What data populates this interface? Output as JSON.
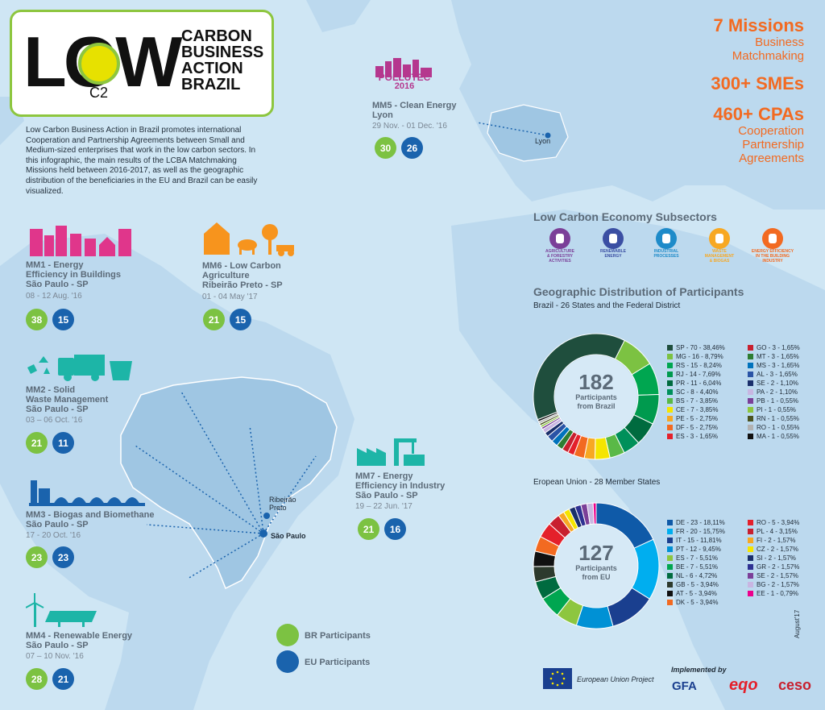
{
  "header": {
    "logo_text": "LOW",
    "logo_sub": "C2",
    "brand_lines": [
      "CARBON",
      "BUSINESS",
      "ACTION",
      "BRAZIL"
    ],
    "intro": "Low Carbon Business Action in Brazil promotes international Cooperation and Partnership Agreements between Small and Medium-sized enterprises that work in the low carbon sectors. In this infographic, the main results of the LCBA Matchmaking Missions held between 2016-2017, as well as the geographic distribution of the beneficiaries in the EU and Brazil can be easily visualized."
  },
  "stats": {
    "missions_value": "7 Missions",
    "missions_label1": "Business",
    "missions_label2": "Matchmaking",
    "smes": "300+ SMEs",
    "cpas": "460+ CPAs",
    "cpas_label1": "Cooperation",
    "cpas_label2": "Partnership",
    "cpas_label3": "Agreements"
  },
  "missions": {
    "mm1": {
      "title1": "MM1 - Energy",
      "title2": "Efficiency in Buildings",
      "city": "São Paulo - SP",
      "date": "08 - 12   Aug. '16",
      "br": "38",
      "eu": "15"
    },
    "mm2": {
      "title1": "MM2 - Solid",
      "title2": "Waste Management",
      "city": "São Paulo - SP",
      "date": "03 – 06 Oct. '16",
      "br": "21",
      "eu": "11"
    },
    "mm3": {
      "title1": "MM3 - Biogas and Biomethane",
      "city": "São Paulo - SP",
      "date": "17 - 20 Oct. '16",
      "br": "23",
      "eu": "23"
    },
    "mm4": {
      "title1": "MM4 - Renewable Energy",
      "city": "São Paulo - SP",
      "date": "07 – 10 Nov. '16",
      "br": "28",
      "eu": "21"
    },
    "mm5": {
      "logo": "POLLUTEC",
      "logo_year": "2016",
      "title1": "MM5 - Clean Energy",
      "city": "Lyon",
      "date": "29 Nov. - 01 Dec. '16",
      "br": "30",
      "eu": "26"
    },
    "mm6": {
      "title1": "MM6 - Low Carbon",
      "title2": "Agriculture",
      "city": "Ribeirão Preto - SP",
      "date": "01 - 04 May '17",
      "br": "21",
      "eu": "15"
    },
    "mm7": {
      "title1": "MM7 - Energy",
      "title2": "Efficiency in Industry",
      "city": "São Paulo - SP",
      "date": "19 – 22  Jun. '17",
      "br": "21",
      "eu": "16"
    }
  },
  "map_labels": {
    "lyon": "Lyon",
    "ribeirao": "Ribeirão",
    "ribeirao2": "Preto",
    "saopaulo": "São Paulo"
  },
  "subsectors": {
    "title": "Low Carbon Economy Subsectors",
    "items": [
      {
        "label1": "AGRICULTURE",
        "label2": "& FORESTRY",
        "label3": "ACTIVITIES",
        "color": "#7b3f98",
        "icon": "plant-icon"
      },
      {
        "label1": "RENEWABLE",
        "label2": "ENERGY",
        "label3": "",
        "color": "#3b4fa3",
        "icon": "bulb-icon"
      },
      {
        "label1": "INDUSTRIAL",
        "label2": "PROCESSES",
        "label3": "",
        "color": "#1e8bc9",
        "icon": "factory-icon"
      },
      {
        "label1": "WASTE",
        "label2": "MANAGEMENT",
        "label3": "& BIOGAS",
        "color": "#f7a823",
        "icon": "bin-icon"
      },
      {
        "label1": "ENERGY EFFICIENCY",
        "label2": "IN THE BUILDING",
        "label3": "INDUSTRY",
        "color": "#f26a21",
        "icon": "building-icon"
      }
    ]
  },
  "geo": {
    "title": "Geographic Distribution of Participants",
    "brazil_sub": "Brazil - 26 States and the Federal District",
    "eu_sub": "Eropean Union - 28 Member States",
    "brazil_total": "182",
    "brazil_total_label1": "Participants",
    "brazil_total_label2": "from Brazil",
    "eu_total": "127",
    "eu_total_label1": "Participants",
    "eu_total_label2": "from EU"
  },
  "chart_data": [
    {
      "type": "pie",
      "title": "Brazil - 26 States and the Federal District",
      "total": 182,
      "slices": [
        {
          "label": "SP - 70 - 38,46%",
          "value": 70,
          "color": "#1f4e3d"
        },
        {
          "label": "MG - 16 - 8,79%",
          "value": 16,
          "color": "#7cc242"
        },
        {
          "label": "RS - 15 - 8,24%",
          "value": 15,
          "color": "#00a650"
        },
        {
          "label": "RJ - 14 - 7,69%",
          "value": 14,
          "color": "#009a4e"
        },
        {
          "label": "PR - 11 - 6,04%",
          "value": 11,
          "color": "#006b3f"
        },
        {
          "label": "SC - 8 - 4,40%",
          "value": 8,
          "color": "#00905a"
        },
        {
          "label": "BS - 7 - 3,85%",
          "value": 7,
          "color": "#5ab947"
        },
        {
          "label": "CE - 7 - 3,85%",
          "value": 7,
          "color": "#f5e500"
        },
        {
          "label": "PE - 5 - 2,75%",
          "value": 5,
          "color": "#f7a823"
        },
        {
          "label": "DF - 5 - 2,75%",
          "value": 5,
          "color": "#f26a21"
        },
        {
          "label": "ES - 3 - 1,65%",
          "value": 3,
          "color": "#e4202b"
        },
        {
          "label": "GO - 3 - 1,65%",
          "value": 3,
          "color": "#c8202f"
        },
        {
          "label": "MT - 3 - 1,65%",
          "value": 3,
          "color": "#2e7d32"
        },
        {
          "label": "MS - 3 - 1,65%",
          "value": 3,
          "color": "#0072bc"
        },
        {
          "label": "AL - 3 - 1,65%",
          "value": 3,
          "color": "#2a54a6"
        },
        {
          "label": "SE - 2 - 1,10%",
          "value": 2,
          "color": "#1a2f6b"
        },
        {
          "label": "PA - 2 - 1,10%",
          "value": 2,
          "color": "#c8b6e2"
        },
        {
          "label": "PB - 1 - 0,55%",
          "value": 1,
          "color": "#7b3f98"
        },
        {
          "label": "PI - 1 - 0,55%",
          "value": 1,
          "color": "#8dc63f"
        },
        {
          "label": "RN - 1 - 0,55%",
          "value": 1,
          "color": "#4b5320"
        },
        {
          "label": "RO - 1 - 0,55%",
          "value": 1,
          "color": "#b2b2b2"
        },
        {
          "label": "MA - 1 - 0,55%",
          "value": 1,
          "color": "#111111"
        }
      ]
    },
    {
      "type": "pie",
      "title": "Eropean Union - 28 Member States",
      "total": 127,
      "slices": [
        {
          "label": "DE - 23 - 18,11%",
          "value": 23,
          "color": "#0f5aa8"
        },
        {
          "label": "FR - 20 - 15,75%",
          "value": 20,
          "color": "#00aeef"
        },
        {
          "label": "IT - 15 - 11,81%",
          "value": 15,
          "color": "#1a3f8f"
        },
        {
          "label": "PT - 12 - 9,45%",
          "value": 12,
          "color": "#0091d5"
        },
        {
          "label": "ES - 7 - 5,51%",
          "value": 7,
          "color": "#8dc63f"
        },
        {
          "label": "BE - 7 - 5,51%",
          "value": 7,
          "color": "#00a650"
        },
        {
          "label": "NL - 6 - 4,72%",
          "value": 6,
          "color": "#006b3f"
        },
        {
          "label": "GB - 5 - 3,94%",
          "value": 5,
          "color": "#2d3a2d"
        },
        {
          "label": "AT - 5 - 3,94%",
          "value": 5,
          "color": "#111111"
        },
        {
          "label": "DK - 5 - 3,94%",
          "value": 5,
          "color": "#f26a21"
        },
        {
          "label": "RO - 5 - 3,94%",
          "value": 5,
          "color": "#e4202b"
        },
        {
          "label": "PL - 4 - 3,15%",
          "value": 4,
          "color": "#c8202f"
        },
        {
          "label": "FI - 2 - 1,57%",
          "value": 2,
          "color": "#f7a823"
        },
        {
          "label": "CZ - 2 - 1,57%",
          "value": 2,
          "color": "#f5e500"
        },
        {
          "label": "SI - 2 - 1,57%",
          "value": 2,
          "color": "#1a2f6b"
        },
        {
          "label": "GR - 2 - 1,57%",
          "value": 2,
          "color": "#2e3192"
        },
        {
          "label": "SE - 2 - 1,57%",
          "value": 2,
          "color": "#7b3f98"
        },
        {
          "label": "BG - 2 - 1,57%",
          "value": 2,
          "color": "#c8b6e2"
        },
        {
          "label": "EE - 1 - 0,79%",
          "value": 1,
          "color": "#ec008c"
        }
      ]
    }
  ],
  "legend": {
    "br": "BR Participants",
    "eu": "EU Participants"
  },
  "footer": {
    "eu_project": "European Union Project",
    "implemented": "Implemented by",
    "gfa": "GFA",
    "eqo": "eqo",
    "ceso": "ceso",
    "date": "August'17"
  }
}
